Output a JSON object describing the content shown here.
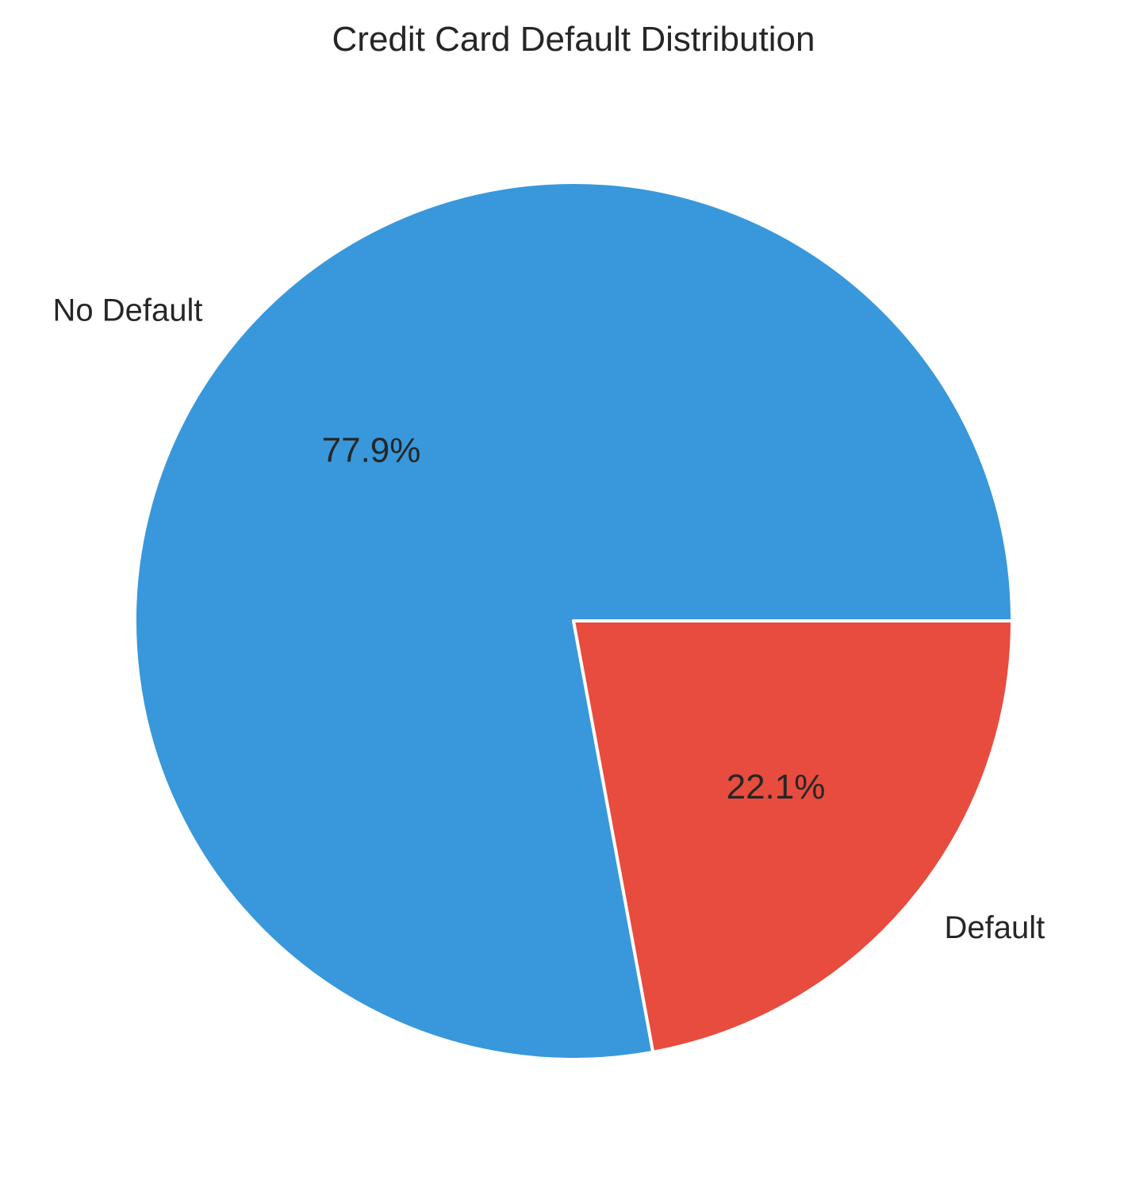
{
  "chart_data": {
    "type": "pie",
    "title": "Credit Card Default Distribution",
    "slices": [
      {
        "label": "No Default",
        "value": 77.9,
        "pct_label": "77.9%",
        "color": "#3898DB"
      },
      {
        "label": "Default",
        "value": 22.1,
        "pct_label": "22.1%",
        "color": "#E74C3F"
      }
    ],
    "start_angle": "0° (3 o'clock), counter-clockwise",
    "legend": "none"
  }
}
